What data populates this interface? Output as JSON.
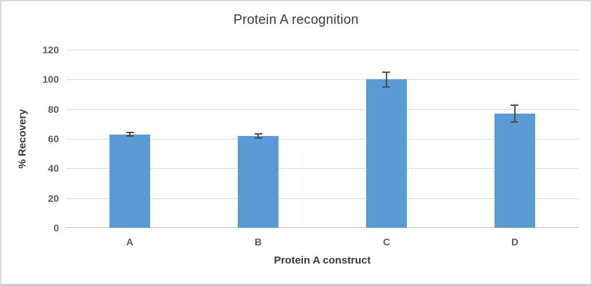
{
  "chart_data": {
    "type": "bar",
    "title": "Protein A recognition",
    "xlabel": "Protein A construct",
    "ylabel": "% Recovery",
    "categories": [
      "A",
      "B",
      "C",
      "D"
    ],
    "values": [
      63,
      62,
      100,
      77
    ],
    "error_bars": [
      1.5,
      2,
      5.5,
      6
    ],
    "ylim": [
      0,
      120
    ],
    "yticks": [
      0,
      20,
      40,
      60,
      80,
      100,
      120
    ],
    "grid": true,
    "legend": false,
    "bar_color": "#5b9bd5",
    "error_bar_color": "#4d4d4d",
    "gridline_color": "#d9d9d9",
    "tick_label_color": "#595959",
    "title_color": "#3a3a3a"
  }
}
